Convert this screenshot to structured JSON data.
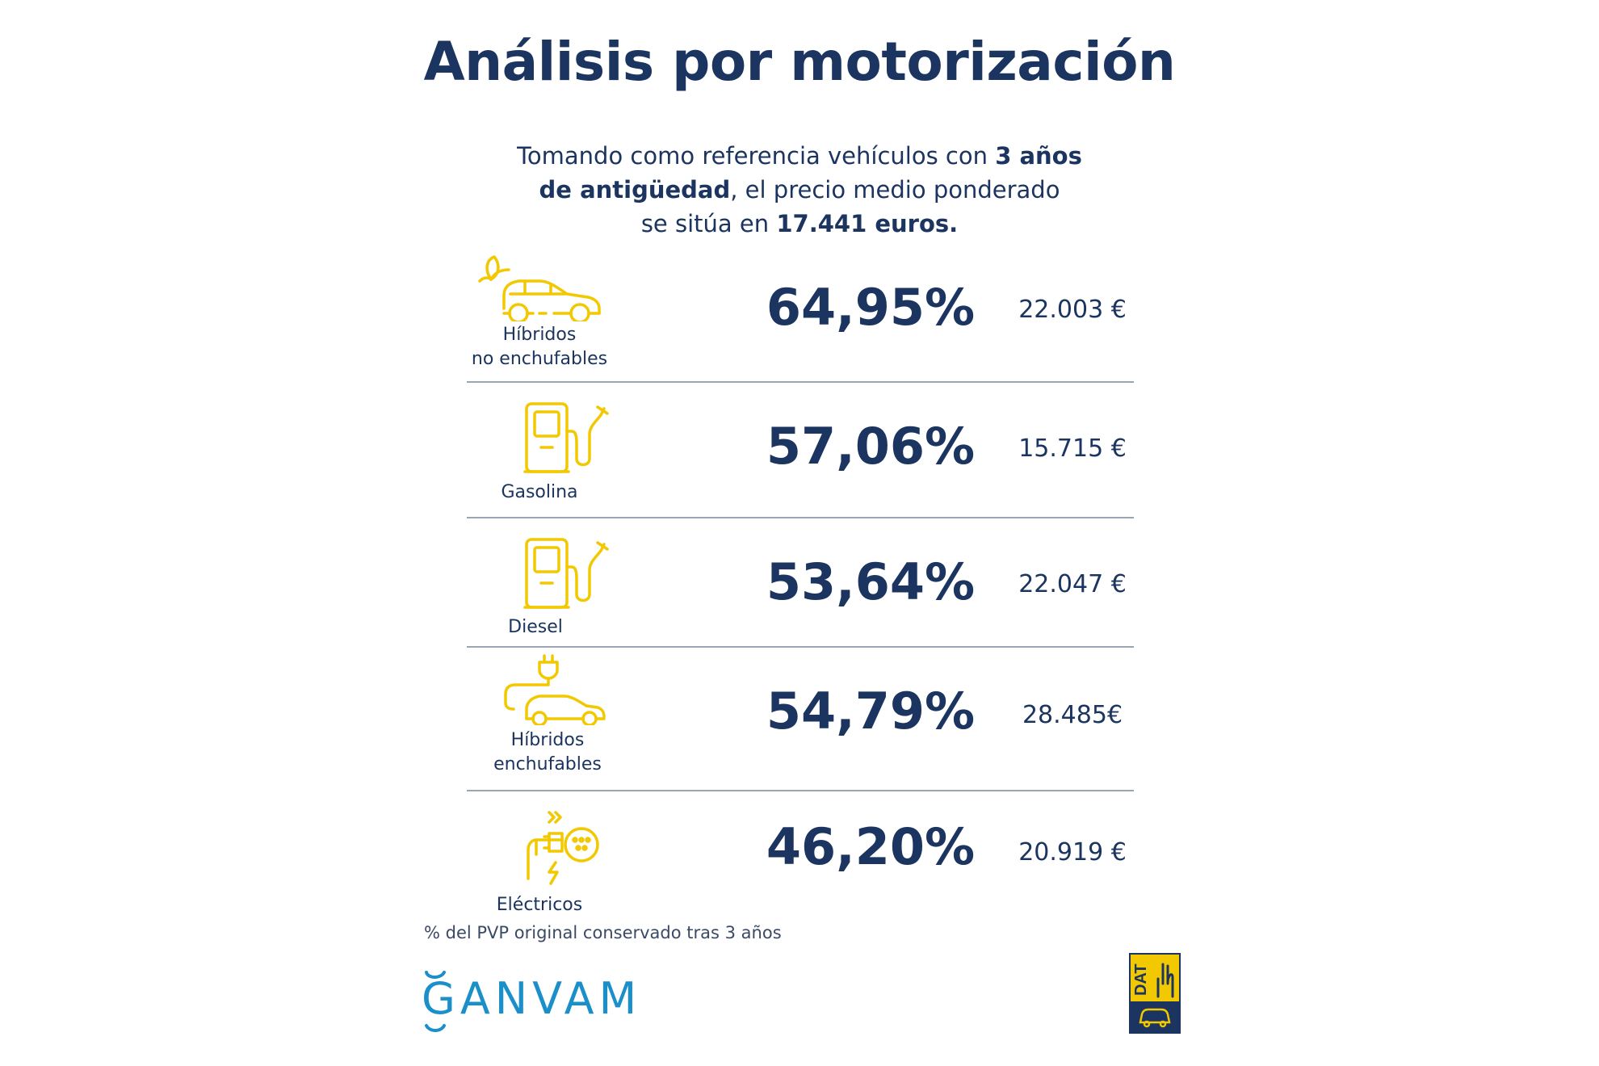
{
  "title": "Análisis por motorización",
  "intro": {
    "part1": "Tomando como referencia vehículos con ",
    "bold1": "3 años",
    "bold2": "de antigüedad",
    "part2": ", el precio medio ponderado",
    "part3": "se sitúa en ",
    "bold3": "17.441  euros."
  },
  "rows": [
    {
      "label_line1": "Híbridos",
      "label_line2": "no enchufables",
      "percent": "64,95%",
      "price": "22.003 €",
      "icon": "hybrid-car-leaf-icon"
    },
    {
      "label_line1": "Gasolina",
      "label_line2": "",
      "percent": "57,06%",
      "price": "15.715 €",
      "icon": "fuel-pump-icon"
    },
    {
      "label_line1": "Diesel",
      "label_line2": "",
      "percent": "53,64%",
      "price": "22.047   €",
      "icon": "fuel-pump-icon"
    },
    {
      "label_line1": "Híbridos",
      "label_line2": "enchufables",
      "percent": "54,79%",
      "price": "28.485€",
      "icon": "plug-in-car-icon"
    },
    {
      "label_line1": "Eléctricos",
      "label_line2": "",
      "percent": "46,20%",
      "price": "20.919 €",
      "icon": "ev-charger-icon"
    }
  ],
  "footnote": "% del PVP original conservado tras 3 años",
  "logos": {
    "ganvam": "GANVAM",
    "dat": "DAT"
  },
  "colors": {
    "navy": "#1b3560",
    "icon_yellow": "#f2c800",
    "ganvam_blue": "#1a8fc9",
    "divider": "#9aa4b3"
  }
}
